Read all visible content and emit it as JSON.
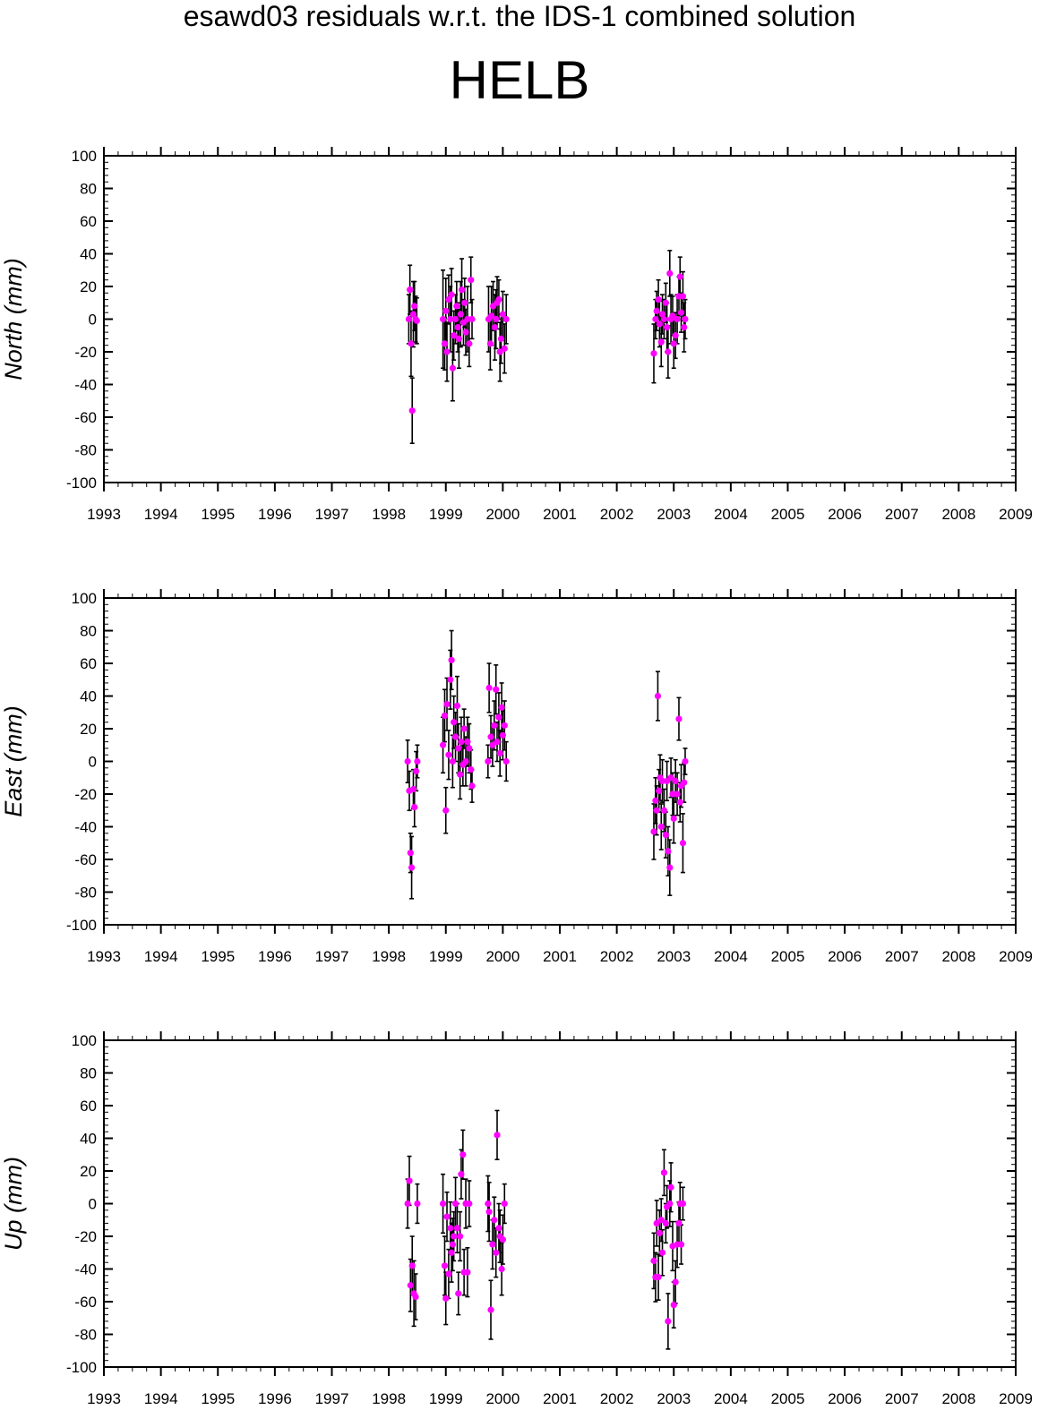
{
  "title": "esawd03 residuals w.r.t. the IDS-1 combined solution",
  "subtitle": "HELB",
  "colors": {
    "point": "#ff00ff",
    "errorbar": "#000000",
    "axis": "#000000"
  },
  "chart_data": [
    {
      "type": "scatter",
      "ylabel": "North (mm)",
      "xlim": [
        1993,
        2009
      ],
      "ylim": [
        -100,
        100
      ],
      "xticks": [
        "1993",
        "1994",
        "1995",
        "1996",
        "1997",
        "1998",
        "1999",
        "2000",
        "2001",
        "2002",
        "2003",
        "2004",
        "2005",
        "2006",
        "2007",
        "2008",
        "2009"
      ],
      "yticks": [
        "100",
        "80",
        "60",
        "40",
        "20",
        "0",
        "-20",
        "-40",
        "-60",
        "-80",
        "-100"
      ],
      "grid": false,
      "points": [
        [
          1998.35,
          0,
          15
        ],
        [
          1998.37,
          18,
          15
        ],
        [
          1998.39,
          -15,
          20
        ],
        [
          1998.41,
          -56,
          20
        ],
        [
          1998.43,
          3,
          20
        ],
        [
          1998.45,
          8,
          15
        ],
        [
          1998.47,
          0,
          14
        ],
        [
          1998.49,
          -1,
          14
        ],
        [
          1998.95,
          0,
          30
        ],
        [
          1998.98,
          -15,
          16
        ],
        [
          1999.0,
          5,
          20
        ],
        [
          1999.02,
          -20,
          18
        ],
        [
          1999.05,
          12,
          15
        ],
        [
          1999.08,
          0,
          20
        ],
        [
          1999.1,
          15,
          16
        ],
        [
          1999.12,
          -30,
          20
        ],
        [
          1999.14,
          -10,
          15
        ],
        [
          1999.17,
          0,
          15
        ],
        [
          1999.19,
          8,
          15
        ],
        [
          1999.21,
          -5,
          15
        ],
        [
          1999.23,
          -12,
          18
        ],
        [
          1999.26,
          3,
          20
        ],
        [
          1999.28,
          18,
          19
        ],
        [
          1999.31,
          -2,
          14
        ],
        [
          1999.33,
          10,
          15
        ],
        [
          1999.35,
          -8,
          14
        ],
        [
          1999.38,
          0,
          20
        ],
        [
          1999.41,
          -15,
          14
        ],
        [
          1999.44,
          24,
          14
        ],
        [
          1999.46,
          0,
          12
        ],
        [
          1999.75,
          0,
          20
        ],
        [
          1999.78,
          -15,
          16
        ],
        [
          1999.8,
          2,
          18
        ],
        [
          1999.83,
          8,
          15
        ],
        [
          1999.86,
          -5,
          20
        ],
        [
          1999.88,
          0,
          18
        ],
        [
          1999.9,
          10,
          16
        ],
        [
          1999.93,
          12,
          12
        ],
        [
          1999.95,
          -20,
          18
        ],
        [
          1999.97,
          -12,
          15
        ],
        [
          2000.0,
          3,
          14
        ],
        [
          2000.03,
          -18,
          15
        ],
        [
          2000.06,
          0,
          15
        ],
        [
          2002.65,
          -21,
          18
        ],
        [
          2002.68,
          0,
          12
        ],
        [
          2002.7,
          5,
          12
        ],
        [
          2002.73,
          12,
          12
        ],
        [
          2002.75,
          -3,
          14
        ],
        [
          2002.78,
          -14,
          15
        ],
        [
          2002.8,
          3,
          12
        ],
        [
          2002.83,
          0,
          12
        ],
        [
          2002.86,
          10,
          12
        ],
        [
          2002.88,
          -5,
          15
        ],
        [
          2002.9,
          -20,
          16
        ],
        [
          2002.93,
          28,
          14
        ],
        [
          2002.95,
          0,
          15
        ],
        [
          2002.98,
          2,
          12
        ],
        [
          2003.0,
          -15,
          15
        ],
        [
          2003.03,
          -10,
          14
        ],
        [
          2003.06,
          0,
          15
        ],
        [
          2003.09,
          14,
          12
        ],
        [
          2003.11,
          26,
          12
        ],
        [
          2003.13,
          4,
          12
        ],
        [
          2003.16,
          14,
          15
        ],
        [
          2003.18,
          -5,
          15
        ],
        [
          2003.2,
          0,
          12
        ]
      ]
    },
    {
      "type": "scatter",
      "ylabel": "East (mm)",
      "xlim": [
        1993,
        2009
      ],
      "ylim": [
        -100,
        100
      ],
      "xticks": [
        "1993",
        "1994",
        "1995",
        "1996",
        "1997",
        "1998",
        "1999",
        "2000",
        "2001",
        "2002",
        "2003",
        "2004",
        "2005",
        "2006",
        "2007",
        "2008",
        "2009"
      ],
      "yticks": [
        "100",
        "80",
        "60",
        "40",
        "20",
        "0",
        "-20",
        "-40",
        "-60",
        "-80",
        "-100"
      ],
      "grid": false,
      "points": [
        [
          1998.33,
          0,
          13
        ],
        [
          1998.36,
          -18,
          12
        ],
        [
          1998.38,
          -56,
          12
        ],
        [
          1998.4,
          -65,
          19
        ],
        [
          1998.43,
          -17,
          12
        ],
        [
          1998.45,
          -28,
          12
        ],
        [
          1998.48,
          -6,
          12
        ],
        [
          1998.5,
          0,
          10
        ],
        [
          1998.95,
          10,
          17
        ],
        [
          1998.98,
          28,
          16
        ],
        [
          1999.0,
          -30,
          14
        ],
        [
          1999.02,
          35,
          16
        ],
        [
          1999.05,
          4,
          15
        ],
        [
          1999.08,
          50,
          18
        ],
        [
          1999.1,
          62,
          18
        ],
        [
          1999.12,
          0,
          16
        ],
        [
          1999.14,
          24,
          16
        ],
        [
          1999.17,
          15,
          15
        ],
        [
          1999.2,
          34,
          18
        ],
        [
          1999.22,
          8,
          15
        ],
        [
          1999.25,
          -8,
          15
        ],
        [
          1999.27,
          12,
          15
        ],
        [
          1999.3,
          -2,
          13
        ],
        [
          1999.32,
          20,
          12
        ],
        [
          1999.35,
          0,
          15
        ],
        [
          1999.38,
          12,
          15
        ],
        [
          1999.41,
          8,
          15
        ],
        [
          1999.44,
          -5,
          12
        ],
        [
          1999.46,
          -15,
          10
        ],
        [
          1999.74,
          0,
          10
        ],
        [
          1999.76,
          45,
          15
        ],
        [
          1999.79,
          15,
          13
        ],
        [
          1999.82,
          10,
          13
        ],
        [
          1999.85,
          22,
          15
        ],
        [
          1999.88,
          44,
          15
        ],
        [
          1999.9,
          12,
          12
        ],
        [
          1999.93,
          27,
          15
        ],
        [
          1999.95,
          5,
          14
        ],
        [
          1999.98,
          33,
          15
        ],
        [
          2000.0,
          16,
          15
        ],
        [
          2000.03,
          22,
          15
        ],
        [
          2000.06,
          0,
          12
        ],
        [
          2002.65,
          -43,
          17
        ],
        [
          2002.68,
          -24,
          14
        ],
        [
          2002.7,
          -30,
          15
        ],
        [
          2002.72,
          40,
          15
        ],
        [
          2002.74,
          -18,
          13
        ],
        [
          2002.76,
          -10,
          14
        ],
        [
          2002.78,
          -40,
          14
        ],
        [
          2002.8,
          -12,
          13
        ],
        [
          2002.83,
          -30,
          13
        ],
        [
          2002.86,
          -45,
          14
        ],
        [
          2002.88,
          -12,
          12
        ],
        [
          2002.9,
          -55,
          15
        ],
        [
          2002.93,
          -65,
          17
        ],
        [
          2002.95,
          -10,
          12
        ],
        [
          2002.98,
          -20,
          13
        ],
        [
          2003.0,
          -35,
          15
        ],
        [
          2003.03,
          -12,
          13
        ],
        [
          2003.06,
          -20,
          13
        ],
        [
          2003.09,
          26,
          13
        ],
        [
          2003.11,
          -25,
          12
        ],
        [
          2003.13,
          -15,
          13
        ],
        [
          2003.16,
          -50,
          18
        ],
        [
          2003.18,
          -13,
          12
        ],
        [
          2003.2,
          0,
          8
        ]
      ]
    },
    {
      "type": "scatter",
      "ylabel": "Up (mm)",
      "xlim": [
        1993,
        2009
      ],
      "ylim": [
        -100,
        100
      ],
      "xticks": [
        "1993",
        "1994",
        "1995",
        "1996",
        "1997",
        "1998",
        "1999",
        "2000",
        "2001",
        "2002",
        "2003",
        "2004",
        "2005",
        "2006",
        "2007",
        "2008",
        "2009"
      ],
      "yticks": [
        "100",
        "80",
        "60",
        "40",
        "20",
        "0",
        "-20",
        "-40",
        "-60",
        "-80",
        "-100"
      ],
      "grid": false,
      "points": [
        [
          1998.33,
          0,
          15
        ],
        [
          1998.36,
          14,
          15
        ],
        [
          1998.38,
          -50,
          16
        ],
        [
          1998.41,
          -38,
          18
        ],
        [
          1998.44,
          -55,
          20
        ],
        [
          1998.47,
          -57,
          14
        ],
        [
          1998.5,
          0,
          12
        ],
        [
          1998.95,
          0,
          18
        ],
        [
          1998.98,
          -38,
          18
        ],
        [
          1999.0,
          -58,
          16
        ],
        [
          1999.02,
          -8,
          15
        ],
        [
          1999.05,
          -43,
          15
        ],
        [
          1999.08,
          -15,
          16
        ],
        [
          1999.1,
          -30,
          18
        ],
        [
          1999.12,
          -25,
          16
        ],
        [
          1999.14,
          -20,
          15
        ],
        [
          1999.17,
          0,
          16
        ],
        [
          1999.2,
          -15,
          15
        ],
        [
          1999.22,
          -55,
          13
        ],
        [
          1999.25,
          -20,
          15
        ],
        [
          1999.27,
          18,
          15
        ],
        [
          1999.3,
          30,
          15
        ],
        [
          1999.32,
          -42,
          14
        ],
        [
          1999.35,
          0,
          15
        ],
        [
          1999.38,
          -42,
          15
        ],
        [
          1999.41,
          0,
          14
        ],
        [
          1999.74,
          0,
          17
        ],
        [
          1999.76,
          -5,
          18
        ],
        [
          1999.79,
          -65,
          18
        ],
        [
          1999.82,
          -25,
          15
        ],
        [
          1999.85,
          -10,
          14
        ],
        [
          1999.88,
          -30,
          15
        ],
        [
          1999.9,
          42,
          15
        ],
        [
          1999.93,
          -15,
          15
        ],
        [
          1999.95,
          -20,
          16
        ],
        [
          1999.98,
          -40,
          16
        ],
        [
          2000.0,
          -22,
          15
        ],
        [
          2000.03,
          0,
          12
        ],
        [
          2002.65,
          -35,
          17
        ],
        [
          2002.68,
          -45,
          15
        ],
        [
          2002.7,
          -12,
          14
        ],
        [
          2002.73,
          -45,
          14
        ],
        [
          2002.75,
          -18,
          14
        ],
        [
          2002.78,
          -10,
          13
        ],
        [
          2002.8,
          -30,
          14
        ],
        [
          2002.83,
          19,
          14
        ],
        [
          2002.86,
          -12,
          12
        ],
        [
          2002.88,
          -2,
          13
        ],
        [
          2002.9,
          -72,
          17
        ],
        [
          2002.93,
          0,
          14
        ],
        [
          2002.95,
          10,
          15
        ],
        [
          2002.98,
          -26,
          15
        ],
        [
          2003.0,
          -62,
          14
        ],
        [
          2003.03,
          -48,
          13
        ],
        [
          2003.06,
          -25,
          14
        ],
        [
          2003.09,
          -12,
          13
        ],
        [
          2003.11,
          0,
          13
        ],
        [
          2003.13,
          -25,
          12
        ],
        [
          2003.16,
          0,
          10
        ]
      ]
    }
  ]
}
